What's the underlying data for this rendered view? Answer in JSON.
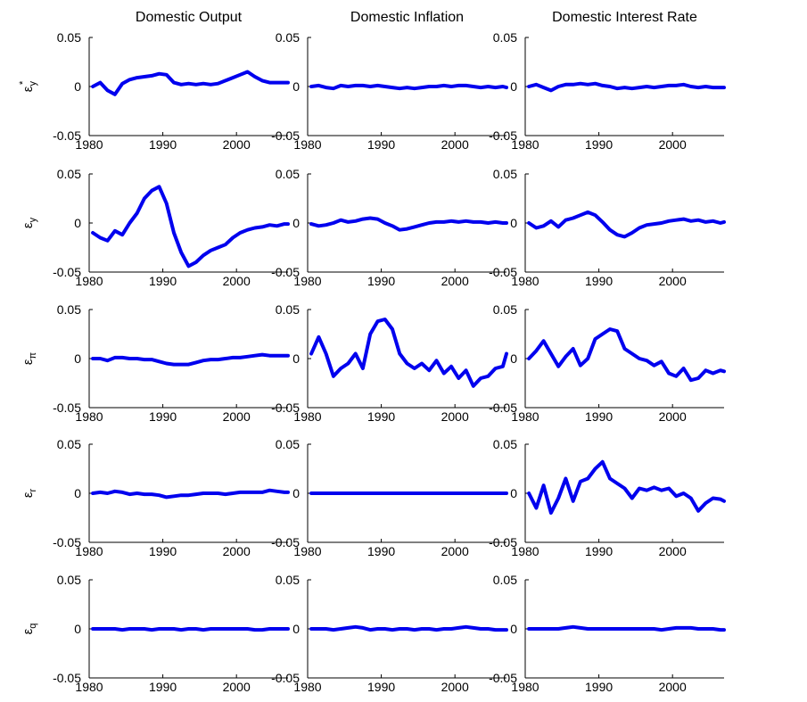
{
  "figure": {
    "columns": [
      "Domestic Output",
      "Domestic Inflation",
      "Domestic Interest Rate"
    ],
    "rows": [
      {
        "symbol": "ε",
        "subscript": "y",
        "superscript": "*"
      },
      {
        "symbol": "ε",
        "subscript": "y",
        "superscript": ""
      },
      {
        "symbol": "ε",
        "subscript": "π",
        "superscript": ""
      },
      {
        "symbol": "ε",
        "subscript": "r",
        "superscript": ""
      },
      {
        "symbol": "ε",
        "subscript": "q",
        "superscript": ""
      }
    ],
    "line_color": "#0000ee"
  },
  "chart_data": {
    "type": "line",
    "layout": "grid 5 rows x 3 columns",
    "xlim": [
      1980,
      2007
    ],
    "ylim": [
      -0.05,
      0.05
    ],
    "xticks": [
      1980,
      1990,
      2000
    ],
    "xtick_labels": [
      "1980",
      "1990",
      "2000"
    ],
    "yticks": [
      -0.05,
      0,
      0.05
    ],
    "ytick_labels": [
      "-0.05",
      "0",
      "0.05"
    ],
    "x": [
      1980.5,
      1981.5,
      1982.5,
      1983.5,
      1984.5,
      1985.5,
      1986.5,
      1987.5,
      1988.5,
      1989.5,
      1990.5,
      1991.5,
      1992.5,
      1993.5,
      1994.5,
      1995.5,
      1996.5,
      1997.5,
      1998.5,
      1999.5,
      2000.5,
      2001.5,
      2002.5,
      2003.5,
      2004.5,
      2005.5,
      2006.5,
      2007.0
    ],
    "panels": [
      {
        "row": 0,
        "col": 0,
        "values": [
          0.0,
          0.004,
          -0.004,
          -0.008,
          0.003,
          0.007,
          0.009,
          0.01,
          0.011,
          0.013,
          0.012,
          0.004,
          0.002,
          0.003,
          0.002,
          0.003,
          0.002,
          0.003,
          0.006,
          0.009,
          0.012,
          0.015,
          0.01,
          0.006,
          0.004,
          0.004,
          0.004,
          0.004
        ]
      },
      {
        "row": 0,
        "col": 1,
        "values": [
          0.0,
          0.001,
          -0.001,
          -0.002,
          0.001,
          0.0,
          0.001,
          0.001,
          0.0,
          0.001,
          0.0,
          -0.001,
          -0.002,
          -0.001,
          -0.002,
          -0.001,
          0.0,
          0.0,
          0.001,
          0.0,
          0.001,
          0.001,
          0.0,
          -0.001,
          0.0,
          -0.001,
          0.0,
          -0.001
        ]
      },
      {
        "row": 0,
        "col": 2,
        "values": [
          0.0,
          0.002,
          -0.001,
          -0.004,
          0.0,
          0.002,
          0.002,
          0.003,
          0.002,
          0.003,
          0.001,
          0.0,
          -0.002,
          -0.001,
          -0.002,
          -0.001,
          0.0,
          -0.001,
          0.0,
          0.001,
          0.001,
          0.002,
          0.0,
          -0.001,
          0.0,
          -0.001,
          -0.001,
          -0.001
        ]
      },
      {
        "row": 1,
        "col": 0,
        "values": [
          -0.01,
          -0.015,
          -0.018,
          -0.008,
          -0.012,
          0.0,
          0.01,
          0.025,
          0.033,
          0.037,
          0.02,
          -0.01,
          -0.03,
          -0.044,
          -0.04,
          -0.033,
          -0.028,
          -0.025,
          -0.022,
          -0.015,
          -0.01,
          -0.007,
          -0.005,
          -0.004,
          -0.002,
          -0.003,
          -0.001,
          -0.001
        ]
      },
      {
        "row": 1,
        "col": 1,
        "values": [
          -0.001,
          -0.003,
          -0.002,
          0.0,
          0.003,
          0.001,
          0.002,
          0.004,
          0.005,
          0.004,
          0.0,
          -0.003,
          -0.007,
          -0.006,
          -0.004,
          -0.002,
          0.0,
          0.001,
          0.001,
          0.002,
          0.001,
          0.002,
          0.001,
          0.001,
          0.0,
          0.001,
          0.0,
          0.0
        ]
      },
      {
        "row": 1,
        "col": 2,
        "values": [
          0.0,
          -0.005,
          -0.003,
          0.002,
          -0.004,
          0.003,
          0.005,
          0.008,
          0.011,
          0.008,
          0.001,
          -0.007,
          -0.012,
          -0.014,
          -0.01,
          -0.005,
          -0.002,
          -0.001,
          0.0,
          0.002,
          0.003,
          0.004,
          0.002,
          0.003,
          0.001,
          0.002,
          0.0,
          0.001
        ]
      },
      {
        "row": 2,
        "col": 0,
        "values": [
          0.0,
          0.0,
          -0.002,
          0.001,
          0.001,
          0.0,
          0.0,
          -0.001,
          -0.001,
          -0.003,
          -0.005,
          -0.006,
          -0.006,
          -0.006,
          -0.004,
          -0.002,
          -0.001,
          -0.001,
          0.0,
          0.001,
          0.001,
          0.002,
          0.003,
          0.004,
          0.003,
          0.003,
          0.003,
          0.003
        ]
      },
      {
        "row": 2,
        "col": 1,
        "values": [
          0.005,
          0.022,
          0.005,
          -0.018,
          -0.01,
          -0.005,
          0.005,
          -0.01,
          0.025,
          0.038,
          0.04,
          0.03,
          0.005,
          -0.005,
          -0.01,
          -0.005,
          -0.012,
          -0.002,
          -0.015,
          -0.008,
          -0.02,
          -0.012,
          -0.028,
          -0.02,
          -0.018,
          -0.01,
          -0.008,
          0.005
        ]
      },
      {
        "row": 2,
        "col": 1,
        "skip": true,
        "values": []
      },
      {
        "row": 2,
        "col": 2,
        "values": [
          0.0,
          0.008,
          0.018,
          0.005,
          -0.008,
          0.002,
          0.01,
          -0.007,
          0.0,
          0.02,
          0.025,
          0.03,
          0.028,
          0.01,
          0.005,
          0.0,
          -0.002,
          -0.007,
          -0.003,
          -0.015,
          -0.018,
          -0.01,
          -0.022,
          -0.02,
          -0.012,
          -0.015,
          -0.012,
          -0.013
        ]
      }
    ],
    "panels_extra": [
      {
        "row": 3,
        "col": 0,
        "values": [
          0.0,
          0.001,
          0.0,
          0.002,
          0.001,
          -0.001,
          0.0,
          -0.001,
          -0.001,
          -0.002,
          -0.004,
          -0.003,
          -0.002,
          -0.002,
          -0.001,
          0.0,
          0.0,
          0.0,
          -0.001,
          0.0,
          0.001,
          0.001,
          0.001,
          0.001,
          0.003,
          0.002,
          0.001,
          0.001
        ]
      },
      {
        "row": 3,
        "col": 1,
        "values": [
          0.0,
          0.0,
          0.0,
          0.0,
          0.0,
          0.0,
          0.0,
          0.0,
          0.0,
          0.0,
          0.0,
          0.0,
          0.0,
          0.0,
          0.0,
          0.0,
          0.0,
          0.0,
          0.0,
          0.0,
          0.0,
          0.0,
          0.0,
          0.0,
          0.0,
          0.0,
          0.0,
          0.0
        ]
      },
      {
        "row": 3,
        "col": 2,
        "values": [
          0.0,
          -0.015,
          0.008,
          -0.02,
          -0.005,
          0.015,
          -0.008,
          0.012,
          0.015,
          0.025,
          0.032,
          0.015,
          0.01,
          0.005,
          -0.005,
          0.005,
          0.003,
          0.006,
          0.003,
          0.005,
          -0.003,
          0.0,
          -0.005,
          -0.018,
          -0.01,
          -0.005,
          -0.006,
          -0.008
        ]
      },
      {
        "row": 4,
        "col": 0,
        "values": [
          0.0,
          0.0,
          0.0,
          0.0,
          -0.001,
          0.0,
          0.0,
          0.0,
          -0.001,
          0.0,
          0.0,
          0.0,
          -0.001,
          0.0,
          0.0,
          -0.001,
          0.0,
          0.0,
          0.0,
          0.0,
          0.0,
          0.0,
          -0.001,
          -0.001,
          0.0,
          0.0,
          0.0,
          0.0
        ]
      },
      {
        "row": 4,
        "col": 1,
        "values": [
          0.0,
          0.0,
          0.0,
          -0.001,
          0.0,
          0.001,
          0.002,
          0.001,
          -0.001,
          0.0,
          0.0,
          -0.001,
          0.0,
          0.0,
          -0.001,
          0.0,
          0.0,
          -0.001,
          0.0,
          0.0,
          0.001,
          0.002,
          0.001,
          0.0,
          0.0,
          -0.001,
          -0.001,
          -0.001
        ]
      },
      {
        "row": 4,
        "col": 2,
        "values": [
          0.0,
          0.0,
          0.0,
          0.0,
          0.0,
          0.001,
          0.002,
          0.001,
          0.0,
          0.0,
          0.0,
          0.0,
          0.0,
          0.0,
          0.0,
          0.0,
          0.0,
          0.0,
          -0.001,
          0.0,
          0.001,
          0.001,
          0.001,
          0.0,
          0.0,
          0.0,
          -0.001,
          -0.001
        ]
      }
    ]
  }
}
